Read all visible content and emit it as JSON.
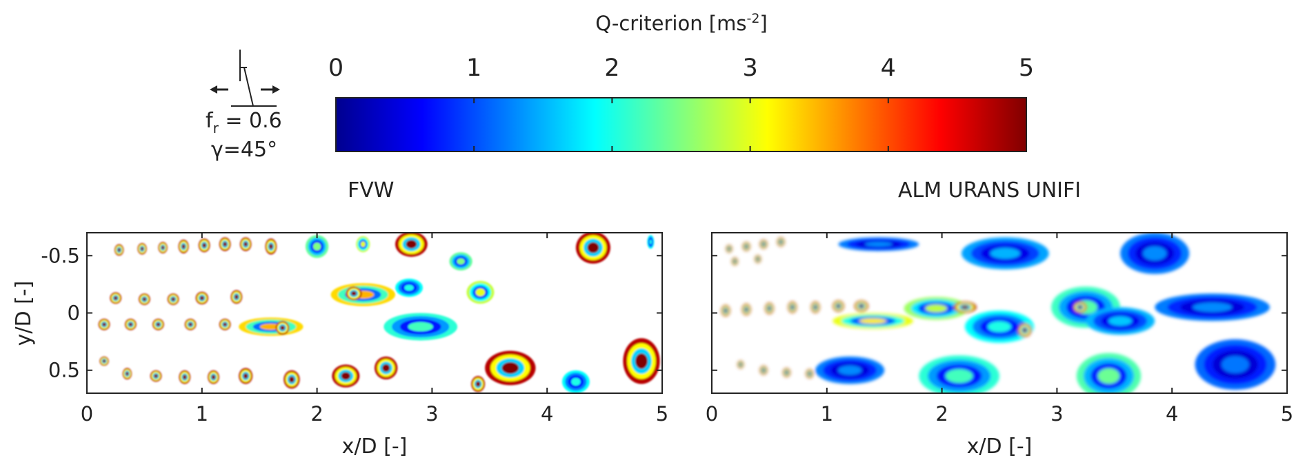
{
  "colorbar": {
    "title_main": "Q-criterion [ms",
    "title_sup": "-2",
    "title_end": "]",
    "range": [
      0,
      5
    ],
    "ticks": [
      "0",
      "1",
      "2",
      "3",
      "4",
      "5"
    ],
    "colormap": "jet",
    "stops": [
      "#00008f",
      "#0000ff",
      "#0080ff",
      "#00ffff",
      "#80ff80",
      "#ffff00",
      "#ff8000",
      "#ff0000",
      "#800000"
    ]
  },
  "inset": {
    "fr_base": "f",
    "fr_sub": "r",
    "fr_value": " = 0.6",
    "gamma_label": "γ=45°",
    "icon": "yawed-turbine-with-double-arrow-icon"
  },
  "chart_data": [
    {
      "type": "heatmap",
      "title": "FVW",
      "xlabel": "x/D [-]",
      "ylabel": "y/D [-]",
      "xlim": [
        0,
        5
      ],
      "ylim": [
        -0.7,
        0.7
      ],
      "y_inverted": true,
      "xticks": [
        "0",
        "1",
        "2",
        "3",
        "4",
        "5"
      ],
      "yticks": [
        "-0.5",
        "0",
        "0.5"
      ],
      "ytick_values": [
        -0.5,
        0,
        0.5
      ],
      "blobs": [
        {
          "x": 0.28,
          "y": -0.55,
          "rx": 0.04,
          "ry": 0.05,
          "v": 5
        },
        {
          "x": 0.48,
          "y": -0.56,
          "rx": 0.04,
          "ry": 0.05,
          "v": 5
        },
        {
          "x": 0.66,
          "y": -0.57,
          "rx": 0.04,
          "ry": 0.05,
          "v": 5
        },
        {
          "x": 0.84,
          "y": -0.58,
          "rx": 0.045,
          "ry": 0.06,
          "v": 5
        },
        {
          "x": 1.02,
          "y": -0.59,
          "rx": 0.05,
          "ry": 0.06,
          "v": 5
        },
        {
          "x": 1.2,
          "y": -0.6,
          "rx": 0.05,
          "ry": 0.06,
          "v": 5
        },
        {
          "x": 1.38,
          "y": -0.6,
          "rx": 0.05,
          "ry": 0.06,
          "v": 5
        },
        {
          "x": 1.6,
          "y": -0.58,
          "rx": 0.05,
          "ry": 0.07,
          "v": 5
        },
        {
          "x": 2.0,
          "y": -0.58,
          "rx": 0.1,
          "ry": 0.1,
          "v": 2.5
        },
        {
          "x": 2.4,
          "y": -0.6,
          "rx": 0.06,
          "ry": 0.07,
          "v": 3
        },
        {
          "x": 2.82,
          "y": -0.6,
          "rx": 0.14,
          "ry": 0.11,
          "v": 5
        },
        {
          "x": 3.25,
          "y": -0.45,
          "rx": 0.1,
          "ry": 0.08,
          "v": 2.5
        },
        {
          "x": 4.4,
          "y": -0.57,
          "rx": 0.15,
          "ry": 0.14,
          "v": 5
        },
        {
          "x": 4.9,
          "y": -0.62,
          "rx": 0.03,
          "ry": 0.06,
          "v": 2
        },
        {
          "x": 0.25,
          "y": -0.13,
          "rx": 0.05,
          "ry": 0.05,
          "v": 5
        },
        {
          "x": 0.5,
          "y": -0.12,
          "rx": 0.05,
          "ry": 0.05,
          "v": 5
        },
        {
          "x": 0.75,
          "y": -0.12,
          "rx": 0.05,
          "ry": 0.05,
          "v": 5
        },
        {
          "x": 1.0,
          "y": -0.13,
          "rx": 0.055,
          "ry": 0.055,
          "v": 5
        },
        {
          "x": 1.3,
          "y": -0.14,
          "rx": 0.05,
          "ry": 0.06,
          "v": 5
        },
        {
          "x": 2.4,
          "y": -0.16,
          "rx": 0.28,
          "ry": 0.1,
          "v": 3.5
        },
        {
          "x": 2.32,
          "y": -0.17,
          "rx": 0.07,
          "ry": 0.06,
          "v": 5
        },
        {
          "x": 2.8,
          "y": -0.22,
          "rx": 0.12,
          "ry": 0.08,
          "v": 2
        },
        {
          "x": 3.42,
          "y": -0.18,
          "rx": 0.12,
          "ry": 0.1,
          "v": 3
        },
        {
          "x": 0.15,
          "y": 0.1,
          "rx": 0.05,
          "ry": 0.05,
          "v": 5
        },
        {
          "x": 0.38,
          "y": 0.1,
          "rx": 0.05,
          "ry": 0.05,
          "v": 5
        },
        {
          "x": 0.62,
          "y": 0.1,
          "rx": 0.05,
          "ry": 0.05,
          "v": 5
        },
        {
          "x": 0.9,
          "y": 0.1,
          "rx": 0.05,
          "ry": 0.05,
          "v": 5
        },
        {
          "x": 1.2,
          "y": 0.1,
          "rx": 0.05,
          "ry": 0.05,
          "v": 5
        },
        {
          "x": 1.6,
          "y": 0.12,
          "rx": 0.28,
          "ry": 0.08,
          "v": 3.5
        },
        {
          "x": 1.7,
          "y": 0.13,
          "rx": 0.06,
          "ry": 0.06,
          "v": 5
        },
        {
          "x": 2.9,
          "y": 0.12,
          "rx": 0.32,
          "ry": 0.12,
          "v": 2.2
        },
        {
          "x": 0.15,
          "y": 0.42,
          "rx": 0.04,
          "ry": 0.04,
          "v": 5
        },
        {
          "x": 0.35,
          "y": 0.53,
          "rx": 0.04,
          "ry": 0.05,
          "v": 5
        },
        {
          "x": 0.6,
          "y": 0.55,
          "rx": 0.05,
          "ry": 0.05,
          "v": 5
        },
        {
          "x": 0.85,
          "y": 0.56,
          "rx": 0.05,
          "ry": 0.06,
          "v": 5
        },
        {
          "x": 1.1,
          "y": 0.56,
          "rx": 0.05,
          "ry": 0.06,
          "v": 5
        },
        {
          "x": 1.38,
          "y": 0.55,
          "rx": 0.06,
          "ry": 0.07,
          "v": 5
        },
        {
          "x": 1.78,
          "y": 0.58,
          "rx": 0.07,
          "ry": 0.08,
          "v": 5
        },
        {
          "x": 2.25,
          "y": 0.55,
          "rx": 0.12,
          "ry": 0.1,
          "v": 5
        },
        {
          "x": 2.6,
          "y": 0.48,
          "rx": 0.1,
          "ry": 0.1,
          "v": 5
        },
        {
          "x": 3.4,
          "y": 0.62,
          "rx": 0.06,
          "ry": 0.07,
          "v": 5
        },
        {
          "x": 3.68,
          "y": 0.48,
          "rx": 0.22,
          "ry": 0.15,
          "v": 5
        },
        {
          "x": 4.25,
          "y": 0.6,
          "rx": 0.12,
          "ry": 0.1,
          "v": 2
        },
        {
          "x": 4.82,
          "y": 0.42,
          "rx": 0.16,
          "ry": 0.2,
          "v": 5
        }
      ]
    },
    {
      "type": "heatmap",
      "title": "ALM URANS UNIFI",
      "xlabel": "x/D [-]",
      "ylabel": "",
      "xlim": [
        0,
        5
      ],
      "ylim": [
        -0.7,
        0.7
      ],
      "y_inverted": true,
      "xticks": [
        "0",
        "1",
        "2",
        "3",
        "4",
        "5"
      ],
      "yticks": [],
      "blobs": [
        {
          "x": 0.15,
          "y": -0.56,
          "rx": 0.03,
          "ry": 0.035,
          "v": 5
        },
        {
          "x": 0.3,
          "y": -0.58,
          "rx": 0.035,
          "ry": 0.04,
          "v": 5
        },
        {
          "x": 0.45,
          "y": -0.6,
          "rx": 0.035,
          "ry": 0.04,
          "v": 5
        },
        {
          "x": 0.6,
          "y": -0.62,
          "rx": 0.035,
          "ry": 0.04,
          "v": 5
        },
        {
          "x": 0.2,
          "y": -0.45,
          "rx": 0.03,
          "ry": 0.035,
          "v": 5
        },
        {
          "x": 0.4,
          "y": -0.47,
          "rx": 0.03,
          "ry": 0.035,
          "v": 5
        },
        {
          "x": 1.45,
          "y": -0.6,
          "rx": 0.35,
          "ry": 0.06,
          "v": 1.3
        },
        {
          "x": 2.55,
          "y": -0.52,
          "rx": 0.38,
          "ry": 0.14,
          "v": 1.5
        },
        {
          "x": 3.85,
          "y": -0.52,
          "rx": 0.3,
          "ry": 0.18,
          "v": 1.3
        },
        {
          "x": 0.12,
          "y": -0.02,
          "rx": 0.04,
          "ry": 0.05,
          "v": 5
        },
        {
          "x": 0.3,
          "y": -0.03,
          "rx": 0.04,
          "ry": 0.05,
          "v": 5
        },
        {
          "x": 0.5,
          "y": -0.04,
          "rx": 0.04,
          "ry": 0.05,
          "v": 5
        },
        {
          "x": 0.7,
          "y": -0.05,
          "rx": 0.04,
          "ry": 0.05,
          "v": 5
        },
        {
          "x": 0.9,
          "y": -0.05,
          "rx": 0.04,
          "ry": 0.05,
          "v": 5
        },
        {
          "x": 1.1,
          "y": -0.06,
          "rx": 0.05,
          "ry": 0.05,
          "v": 5
        },
        {
          "x": 1.3,
          "y": -0.06,
          "rx": 0.06,
          "ry": 0.05,
          "v": 5
        },
        {
          "x": 1.4,
          "y": 0.07,
          "rx": 0.35,
          "ry": 0.07,
          "v": 3.2
        },
        {
          "x": 1.95,
          "y": -0.04,
          "rx": 0.28,
          "ry": 0.1,
          "v": 2.8
        },
        {
          "x": 2.2,
          "y": -0.05,
          "rx": 0.1,
          "ry": 0.05,
          "v": 5
        },
        {
          "x": 2.5,
          "y": 0.12,
          "rx": 0.3,
          "ry": 0.14,
          "v": 2
        },
        {
          "x": 2.72,
          "y": 0.15,
          "rx": 0.06,
          "ry": 0.06,
          "v": 5
        },
        {
          "x": 3.25,
          "y": -0.05,
          "rx": 0.3,
          "ry": 0.18,
          "v": 2.3
        },
        {
          "x": 3.2,
          "y": -0.05,
          "rx": 0.06,
          "ry": 0.05,
          "v": 5
        },
        {
          "x": 3.55,
          "y": 0.07,
          "rx": 0.3,
          "ry": 0.12,
          "v": 1.6
        },
        {
          "x": 4.35,
          "y": -0.05,
          "rx": 0.5,
          "ry": 0.12,
          "v": 1.3
        },
        {
          "x": 0.25,
          "y": 0.45,
          "rx": 0.03,
          "ry": 0.035,
          "v": 5
        },
        {
          "x": 0.45,
          "y": 0.5,
          "rx": 0.035,
          "ry": 0.04,
          "v": 5
        },
        {
          "x": 0.65,
          "y": 0.52,
          "rx": 0.035,
          "ry": 0.04,
          "v": 5
        },
        {
          "x": 0.85,
          "y": 0.53,
          "rx": 0.035,
          "ry": 0.04,
          "v": 5
        },
        {
          "x": 1.2,
          "y": 0.5,
          "rx": 0.3,
          "ry": 0.12,
          "v": 1.3
        },
        {
          "x": 2.15,
          "y": 0.55,
          "rx": 0.35,
          "ry": 0.18,
          "v": 2.2
        },
        {
          "x": 3.45,
          "y": 0.55,
          "rx": 0.28,
          "ry": 0.2,
          "v": 2.4
        },
        {
          "x": 4.55,
          "y": 0.45,
          "rx": 0.35,
          "ry": 0.22,
          "v": 1.2
        }
      ]
    }
  ]
}
